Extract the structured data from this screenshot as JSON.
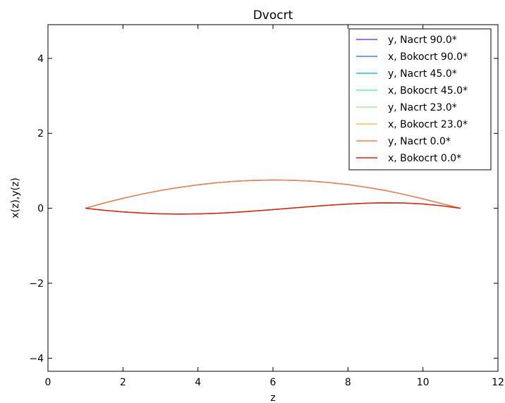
{
  "chart_data": {
    "type": "line",
    "title": "Dvocrt",
    "xlabel": "z",
    "ylabel": "x(z),y(z)",
    "xlim": [
      0,
      12
    ],
    "ylim": [
      -4.35,
      4.9
    ],
    "xticks": [
      0,
      2,
      4,
      6,
      8,
      10,
      12
    ],
    "yticks": [
      -4,
      -2,
      0,
      2,
      4
    ],
    "xtick_labels": [
      "0",
      "2",
      "4",
      "6",
      "8",
      "10",
      "12"
    ],
    "ytick_labels": [
      "−4",
      "−2",
      "0",
      "2",
      "4"
    ],
    "grid": false,
    "legend_position": "top-right",
    "x": [
      1,
      1.5,
      2,
      2.5,
      3,
      3.5,
      4,
      4.5,
      5,
      5.5,
      6,
      6.5,
      7,
      7.5,
      8,
      8.5,
      9,
      9.5,
      10,
      10.5,
      11
    ],
    "series": [
      {
        "name": "y, Nacrt 90.0*",
        "color": "#8a3ee0",
        "values": [
          0,
          0.141,
          0.266,
          0.377,
          0.474,
          0.557,
          0.626,
          0.681,
          0.721,
          0.745,
          0.755,
          0.748,
          0.725,
          0.686,
          0.632,
          0.56,
          0.474,
          0.37,
          0.252,
          0.126,
          0
        ]
      },
      {
        "name": "x, Bokocrt 90.0*",
        "color": "#4a7ff0",
        "values": [
          0,
          -0.055,
          -0.097,
          -0.127,
          -0.147,
          -0.155,
          -0.15,
          -0.135,
          -0.108,
          -0.074,
          -0.036,
          0.005,
          0.045,
          0.082,
          0.113,
          0.136,
          0.145,
          0.14,
          0.115,
          0.067,
          0
        ]
      },
      {
        "name": "y, Nacrt 45.0*",
        "color": "#22c1dc",
        "values": [
          0,
          0.141,
          0.266,
          0.377,
          0.474,
          0.557,
          0.626,
          0.681,
          0.721,
          0.745,
          0.755,
          0.748,
          0.725,
          0.686,
          0.632,
          0.56,
          0.474,
          0.37,
          0.252,
          0.126,
          0
        ]
      },
      {
        "name": "x, Bokocrt 45.0*",
        "color": "#5ce8c8",
        "values": [
          0,
          -0.055,
          -0.097,
          -0.127,
          -0.147,
          -0.155,
          -0.15,
          -0.135,
          -0.108,
          -0.074,
          -0.036,
          0.005,
          0.045,
          0.082,
          0.113,
          0.136,
          0.145,
          0.14,
          0.115,
          0.067,
          0
        ]
      },
      {
        "name": "y, Nacrt 23.0*",
        "color": "#a6eea0",
        "values": [
          0,
          0.141,
          0.266,
          0.377,
          0.474,
          0.557,
          0.626,
          0.681,
          0.721,
          0.745,
          0.755,
          0.748,
          0.725,
          0.686,
          0.632,
          0.56,
          0.474,
          0.37,
          0.252,
          0.126,
          0
        ]
      },
      {
        "name": "x, Bokocrt 23.0*",
        "color": "#f7c05a",
        "values": [
          0,
          -0.055,
          -0.097,
          -0.127,
          -0.147,
          -0.155,
          -0.15,
          -0.135,
          -0.108,
          -0.074,
          -0.036,
          0.005,
          0.045,
          0.082,
          0.113,
          0.136,
          0.145,
          0.14,
          0.115,
          0.067,
          0
        ]
      },
      {
        "name": "y, Nacrt 0.0*",
        "color": "#f08058",
        "values": [
          0,
          0.141,
          0.266,
          0.377,
          0.474,
          0.557,
          0.626,
          0.681,
          0.721,
          0.745,
          0.755,
          0.748,
          0.725,
          0.686,
          0.632,
          0.56,
          0.474,
          0.37,
          0.252,
          0.126,
          0
        ]
      },
      {
        "name": "x, Bokocrt 0.0*",
        "color": "#d62418",
        "values": [
          0,
          -0.055,
          -0.097,
          -0.127,
          -0.147,
          -0.155,
          -0.15,
          -0.135,
          -0.108,
          -0.074,
          -0.036,
          0.005,
          0.045,
          0.082,
          0.113,
          0.136,
          0.145,
          0.14,
          0.115,
          0.067,
          0
        ]
      }
    ]
  }
}
